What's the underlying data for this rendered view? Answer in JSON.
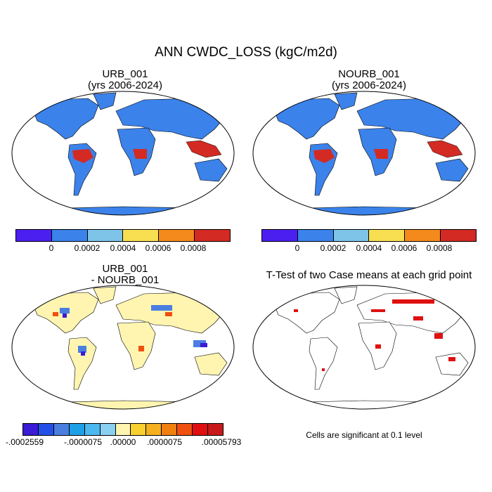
{
  "main_title": "ANN CWDC_LOSS (kgC/m2d)",
  "panels": {
    "urb": {
      "title_line1": "URB_001",
      "title_line2": "(yrs 2006-2024)"
    },
    "nourb": {
      "title_line1": "NOURB_001",
      "title_line2": "(yrs 2006-2024)"
    },
    "diff": {
      "title_line1": "URB_001",
      "title_line2": "- NOURB_001"
    },
    "ttest": {
      "title": "T-Test of two Case means at each grid point",
      "note": "Cells are significant at 0.1 level"
    }
  },
  "colorbar_abs": {
    "colors": [
      "#4b1ff0",
      "#3b82ea",
      "#7ec4e8",
      "#f7df51",
      "#f58a1c",
      "#d42a24"
    ],
    "labels": [
      "0",
      "0.0002",
      "0.0004",
      "0.0006",
      "0.0008"
    ]
  },
  "colorbar_diff": {
    "colors": [
      "#3a1bd6",
      "#2550e8",
      "#4a7fe0",
      "#1ea0e8",
      "#4cb8f0",
      "#8ad0f0",
      "#fff5b0",
      "#f8d030",
      "#f5b020",
      "#f08010",
      "#f05010",
      "#e01010",
      "#c81a1a"
    ],
    "labels": [
      "-.0002559",
      "-.0000075",
      ".00000",
      ".0000075",
      ".00005793"
    ]
  },
  "map_colors": {
    "ocean": "#ffffff",
    "land_abs": "#3b82ea",
    "tropics_abs": "#d42a24",
    "land_diff": "#fff5b0",
    "signif": "#e01010"
  }
}
